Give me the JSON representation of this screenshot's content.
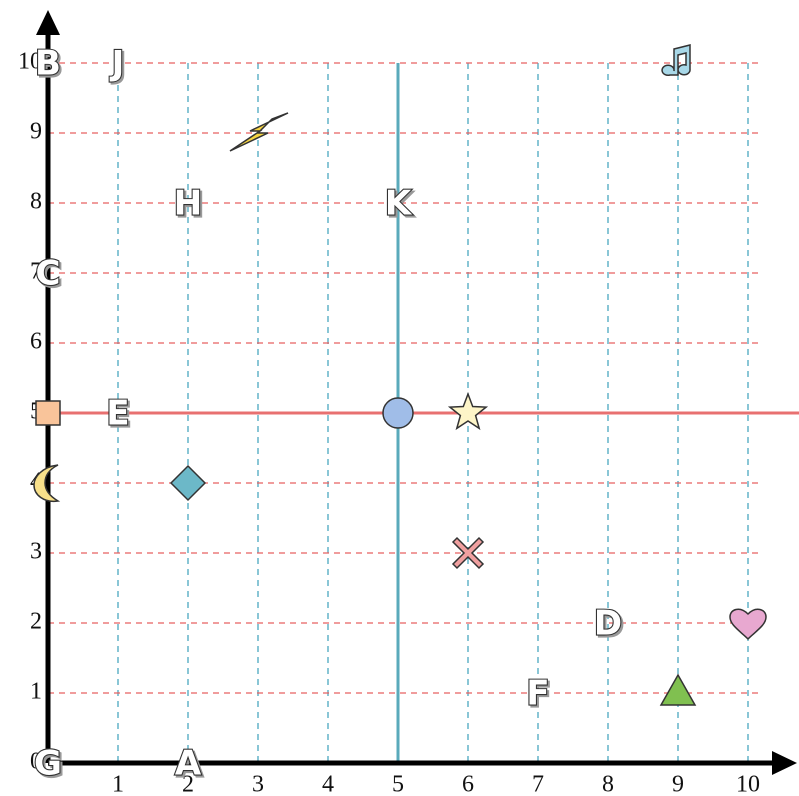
{
  "chart_data": {
    "type": "grid",
    "xlim": [
      0,
      10
    ],
    "ylim": [
      0,
      10
    ],
    "xticks": [
      1,
      2,
      3,
      4,
      5,
      6,
      7,
      8,
      9,
      10
    ],
    "yticks": [
      0,
      1,
      2,
      3,
      4,
      5,
      6,
      7,
      8,
      9,
      10
    ],
    "grid": true,
    "lines": [
      {
        "orient": "vertical",
        "value": 5,
        "color": "#5aaabb"
      },
      {
        "orient": "horizontal",
        "value": 5,
        "color": "#e87070"
      }
    ],
    "letters": [
      {
        "label": "B",
        "x": 0,
        "y": 10
      },
      {
        "label": "J",
        "x": 1,
        "y": 10
      },
      {
        "label": "H",
        "x": 2,
        "y": 8
      },
      {
        "label": "K",
        "x": 5,
        "y": 8
      },
      {
        "label": "C",
        "x": 0,
        "y": 7
      },
      {
        "label": "E",
        "x": 1,
        "y": 5
      },
      {
        "label": "D",
        "x": 8,
        "y": 2
      },
      {
        "label": "F",
        "x": 7,
        "y": 1
      },
      {
        "label": "G",
        "x": 0,
        "y": 0
      },
      {
        "label": "A",
        "x": 2,
        "y": 0
      }
    ],
    "shapes": [
      {
        "marker": "bolt",
        "color": "#f5d442",
        "x": 3,
        "y": 9
      },
      {
        "marker": "note",
        "color": "#a8d8e8",
        "x": 9,
        "y": 10
      },
      {
        "marker": "square",
        "color": "#f9c49a",
        "x": 0,
        "y": 5
      },
      {
        "marker": "circle",
        "color": "#a0bde8",
        "x": 5,
        "y": 5
      },
      {
        "marker": "star",
        "color": "#fdf5c8",
        "x": 6,
        "y": 5
      },
      {
        "marker": "moon",
        "color": "#f8e08a",
        "x": 0,
        "y": 4
      },
      {
        "marker": "diamond",
        "color": "#6cb8c8",
        "x": 2,
        "y": 4
      },
      {
        "marker": "cross",
        "color": "#f0a0a0",
        "x": 6,
        "y": 3
      },
      {
        "marker": "heart",
        "color": "#e8a8d0",
        "x": 10,
        "y": 2
      },
      {
        "marker": "triangle",
        "color": "#80c050",
        "x": 9,
        "y": 1
      }
    ]
  }
}
